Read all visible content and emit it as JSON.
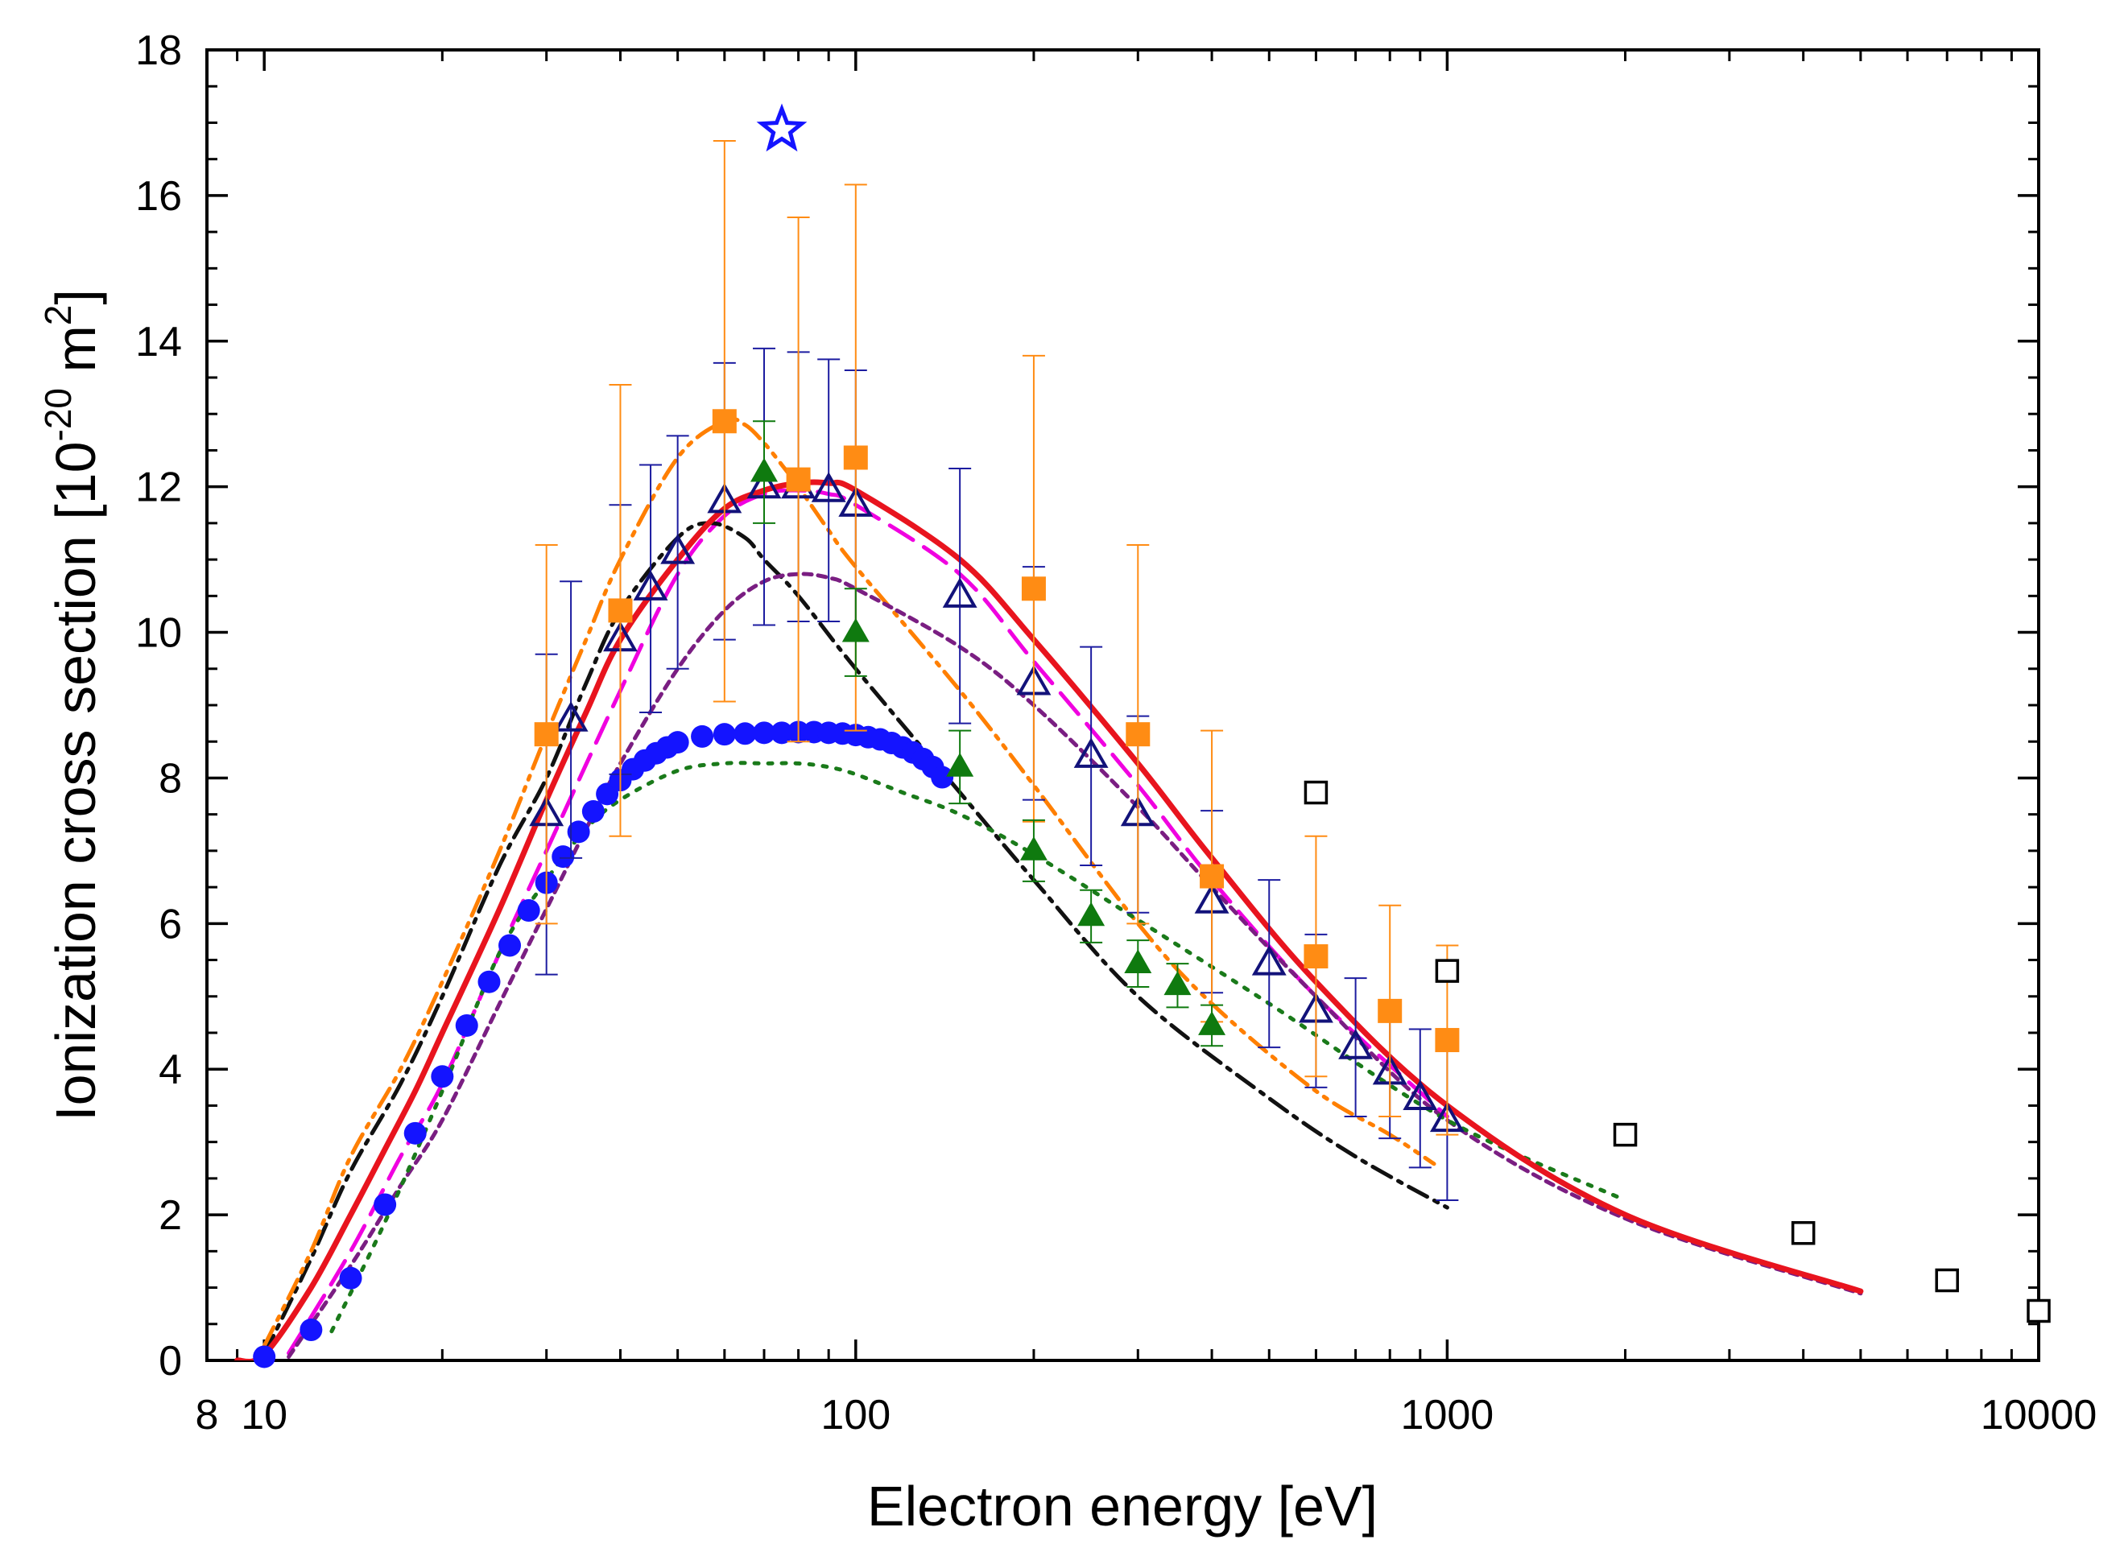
{
  "chart_data": {
    "type": "scatter",
    "xscale": "log",
    "xlim": [
      8,
      10000
    ],
    "ylim": [
      0,
      18
    ],
    "xlabel": "Electron energy [eV]",
    "ylabel": {
      "pre": "Ionization cross section [10",
      "exp1": "-20",
      "mid": " m",
      "exp2": "2",
      "post": "]"
    },
    "x_ticks": [
      8,
      10,
      100,
      1000,
      10000
    ],
    "x_tick_labels": [
      "8",
      "10",
      "100",
      "1000",
      "10000"
    ],
    "y_ticks": [
      0,
      2,
      4,
      6,
      8,
      10,
      12,
      14,
      16,
      18
    ],
    "y_tick_labels": [
      "0",
      "2",
      "4",
      "6",
      "8",
      "10",
      "12",
      "14",
      "16",
      "18"
    ],
    "grid": false,
    "curves": [
      {
        "name": "solid-red",
        "color": "#e8141e",
        "dash": "none",
        "x": [
          9,
          10,
          12,
          14,
          16,
          18,
          20,
          25,
          30,
          35,
          40,
          50,
          60,
          70,
          80,
          90,
          100,
          150,
          200,
          300,
          400,
          600,
          1000,
          2000,
          5000
        ],
        "y": [
          0,
          0.08,
          1.0,
          2.0,
          2.9,
          3.7,
          4.5,
          6.2,
          7.7,
          8.9,
          9.9,
          11.0,
          11.7,
          11.95,
          12.05,
          12.05,
          11.95,
          11.0,
          9.9,
          8.2,
          6.9,
          5.2,
          3.5,
          2.0,
          0.95
        ]
      },
      {
        "name": "dash-magenta",
        "color": "#f000e0",
        "dash": "34,16",
        "x": [
          11,
          14,
          17,
          20,
          25,
          30,
          40,
          50,
          60,
          70,
          80,
          90,
          100,
          150,
          200,
          300,
          400,
          600,
          1000
        ],
        "y": [
          0.1,
          1.5,
          2.8,
          3.8,
          5.6,
          7.0,
          9.2,
          10.8,
          11.6,
          11.9,
          11.95,
          11.9,
          11.75,
          10.8,
          9.6,
          7.9,
          6.6,
          5.0,
          3.35
        ]
      },
      {
        "name": "dashdot-black",
        "color": "#111111",
        "dash": "26,10,5,10",
        "x": [
          10,
          12,
          14,
          17,
          20,
          25,
          30,
          35,
          40,
          50,
          57,
          65,
          70,
          80,
          100,
          150,
          200,
          300,
          500,
          700,
          1000
        ],
        "y": [
          0.08,
          1.4,
          2.6,
          3.8,
          5.0,
          6.8,
          8.0,
          9.3,
          10.3,
          11.3,
          11.5,
          11.3,
          11.0,
          10.5,
          9.5,
          7.8,
          6.6,
          5.0,
          3.6,
          2.8,
          2.1
        ]
      },
      {
        "name": "dashdotdot-orange",
        "color": "#ff7f00",
        "dash": "26,10,5,10,5,10",
        "x": [
          10,
          12,
          14,
          17,
          20,
          25,
          30,
          35,
          40,
          50,
          60,
          65,
          70,
          75,
          80,
          90,
          100,
          150,
          200,
          300,
          400,
          600,
          800,
          950
        ],
        "y": [
          0.2,
          1.5,
          2.8,
          4.0,
          5.2,
          7.0,
          8.6,
          9.9,
          11.0,
          12.4,
          12.9,
          12.85,
          12.6,
          12.3,
          12.0,
          11.4,
          10.9,
          9.2,
          7.9,
          6.0,
          4.9,
          3.7,
          3.1,
          2.7
        ]
      },
      {
        "name": "short-dash-purple",
        "color": "#7a1e82",
        "dash": "10,8",
        "x": [
          11,
          14,
          17,
          20,
          25,
          30,
          35,
          40,
          50,
          60,
          70,
          80,
          90,
          100,
          150,
          200,
          300,
          400,
          600,
          1000,
          2000,
          5000
        ],
        "y": [
          0.05,
          1.3,
          2.4,
          3.3,
          4.9,
          6.2,
          7.3,
          8.2,
          9.5,
          10.3,
          10.7,
          10.8,
          10.75,
          10.6,
          9.8,
          9.0,
          7.6,
          6.5,
          5.0,
          3.3,
          1.95,
          0.92
        ]
      },
      {
        "name": "dotted-green",
        "color": "#1a7a1a",
        "dash": "5,12",
        "x": [
          13,
          16,
          20,
          25,
          30,
          35,
          40,
          50,
          60,
          70,
          80,
          90,
          100,
          120,
          150,
          200,
          300,
          500,
          1000,
          2000
        ],
        "y": [
          0.4,
          1.9,
          3.7,
          5.6,
          6.6,
          7.3,
          7.7,
          8.1,
          8.2,
          8.2,
          8.2,
          8.15,
          8.05,
          7.8,
          7.5,
          6.95,
          6.05,
          4.9,
          3.3,
          2.2
        ]
      }
    ],
    "series": [
      {
        "name": "filled-blue-circles",
        "marker": "circle",
        "fill": "#1414ff",
        "stroke": "#1414ff",
        "x": [
          10,
          12,
          14,
          16,
          18,
          20,
          22,
          24,
          26,
          28,
          30,
          32,
          34,
          36,
          38,
          40,
          42,
          44,
          46,
          48,
          50,
          55,
          60,
          65,
          70,
          75,
          80,
          85,
          90,
          95,
          100,
          105,
          110,
          115,
          120,
          125,
          130,
          135,
          140
        ],
        "y": [
          0.05,
          0.42,
          1.13,
          2.14,
          3.12,
          3.9,
          4.6,
          5.2,
          5.7,
          6.18,
          6.56,
          6.92,
          7.26,
          7.54,
          7.78,
          7.97,
          8.12,
          8.24,
          8.34,
          8.42,
          8.49,
          8.57,
          8.6,
          8.61,
          8.62,
          8.62,
          8.63,
          8.63,
          8.62,
          8.61,
          8.59,
          8.56,
          8.53,
          8.48,
          8.42,
          8.35,
          8.26,
          8.15,
          8.01
        ],
        "yerr": []
      },
      {
        "name": "open-navy-triangles",
        "marker": "triangle-open",
        "fill": "none",
        "stroke": "#12127a",
        "x": [
          30,
          33,
          40,
          45,
          50,
          60,
          70,
          80,
          90,
          100,
          150,
          200,
          250,
          300,
          400,
          500,
          600,
          700,
          800,
          900,
          1000
        ],
        "y": [
          7.5,
          8.8,
          9.9,
          10.6,
          11.1,
          11.8,
          12.0,
          12.0,
          11.95,
          11.75,
          10.5,
          9.3,
          8.3,
          7.5,
          6.3,
          5.45,
          4.8,
          4.3,
          3.95,
          3.6,
          3.3
        ],
        "yerr": [
          2.2,
          1.9,
          1.85,
          1.7,
          1.6,
          1.9,
          1.9,
          1.85,
          1.8,
          1.85,
          1.75,
          1.6,
          1.5,
          1.35,
          1.25,
          1.15,
          1.05,
          0.95,
          0.9,
          0.95,
          1.1
        ]
      },
      {
        "name": "filled-orange-squares",
        "marker": "square",
        "fill": "#ff8c14",
        "stroke": "#ff8c14",
        "x": [
          30,
          40,
          60,
          80,
          100,
          200,
          300,
          400,
          600,
          800,
          1000
        ],
        "y": [
          8.6,
          10.3,
          12.9,
          12.1,
          12.4,
          10.6,
          8.6,
          6.65,
          5.55,
          4.8,
          4.4
        ],
        "yerr": [
          2.6,
          3.1,
          3.85,
          3.6,
          3.75,
          3.2,
          2.6,
          2.0,
          1.65,
          1.45,
          1.3
        ]
      },
      {
        "name": "filled-green-triangles",
        "marker": "triangle",
        "fill": "#0f7a0f",
        "stroke": "#0f7a0f",
        "x": [
          70,
          100,
          150,
          200,
          250,
          300,
          350,
          400
        ],
        "y": [
          12.2,
          10.0,
          8.15,
          7.0,
          6.1,
          5.45,
          5.15,
          4.6
        ],
        "yerr": [
          0.7,
          0.6,
          0.5,
          0.42,
          0.36,
          0.32,
          0.3,
          0.28
        ]
      },
      {
        "name": "open-black-squares",
        "marker": "square-open",
        "fill": "none",
        "stroke": "#000000",
        "x": [
          600,
          1000,
          2000,
          4000,
          7000,
          10000
        ],
        "y": [
          7.8,
          5.35,
          3.1,
          1.75,
          1.1,
          0.68
        ],
        "yerr": []
      },
      {
        "name": "blue-star",
        "marker": "star",
        "fill": "none",
        "stroke": "#1414ff",
        "x": [
          75
        ],
        "y": [
          16.9
        ],
        "yerr": []
      }
    ]
  }
}
